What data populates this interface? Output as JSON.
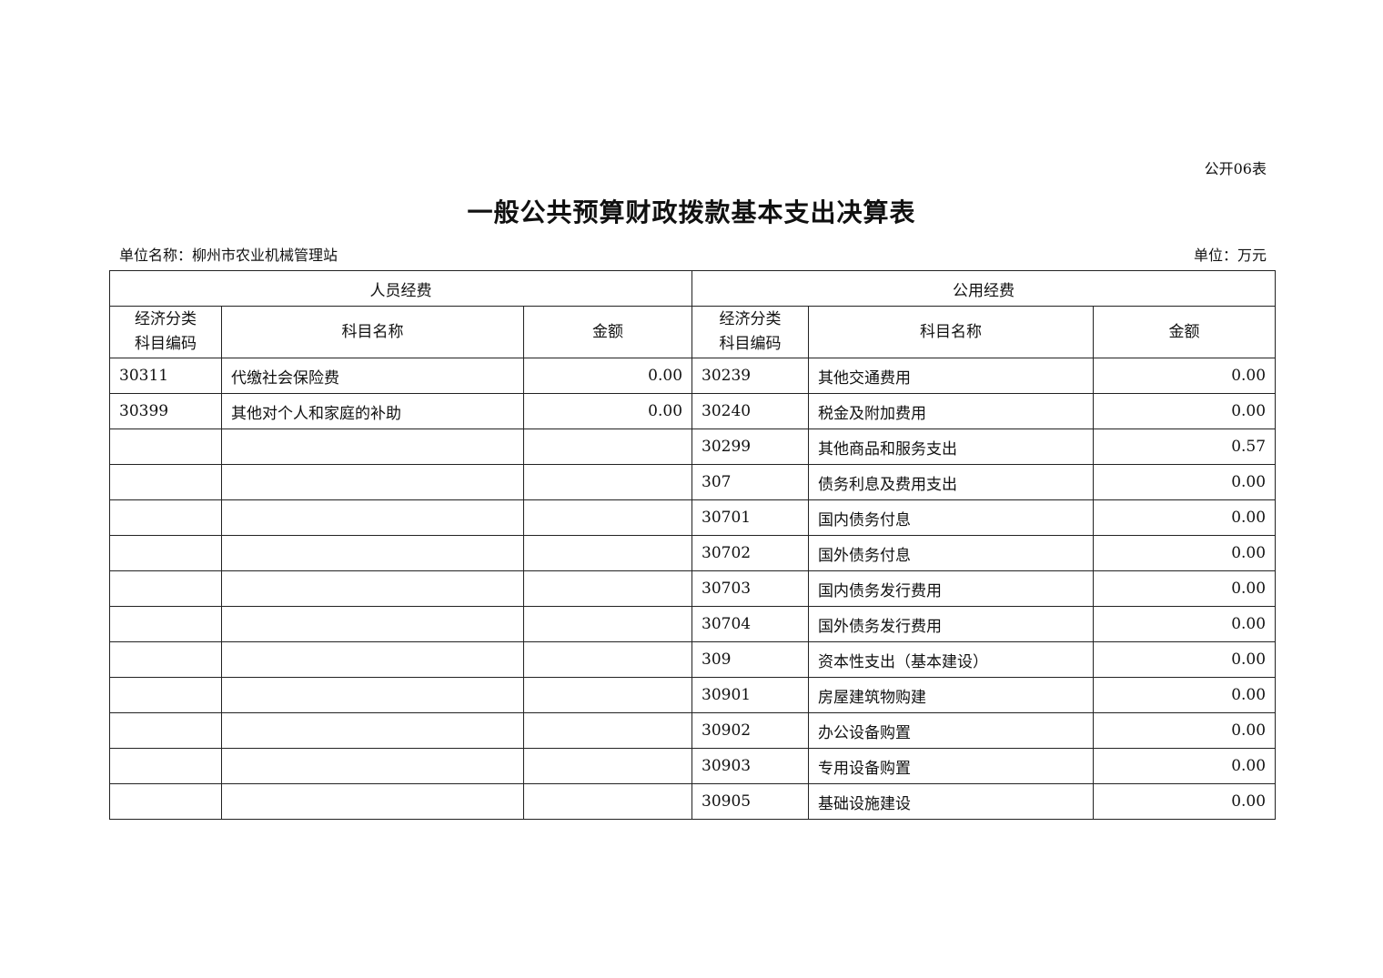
{
  "form_no": "公开06表",
  "title": "一般公共预算财政拨款基本支出决算表",
  "unit_name": "单位名称：柳州市农业机械管理站",
  "unit": "单位：万元",
  "table": {
    "group_headers": [
      "人员经费",
      "公用经费"
    ],
    "sub_headers": [
      "经济分类\n科目编码",
      "科目名称",
      "金额",
      "经济分类\n科目编码",
      "科目名称",
      "金额"
    ],
    "rows": [
      [
        "30311",
        "代缴社会保险费",
        "0.00",
        "30239",
        "其他交通费用",
        "0.00"
      ],
      [
        "30399",
        "其他对个人和家庭的补助",
        "0.00",
        "30240",
        "税金及附加费用",
        "0.00"
      ],
      [
        "",
        "",
        "",
        "30299",
        "其他商品和服务支出",
        "0.57"
      ],
      [
        "",
        "",
        "",
        "307",
        "债务利息及费用支出",
        "0.00"
      ],
      [
        "",
        "",
        "",
        "30701",
        "国内债务付息",
        "0.00"
      ],
      [
        "",
        "",
        "",
        "30702",
        "国外债务付息",
        "0.00"
      ],
      [
        "",
        "",
        "",
        "30703",
        "国内债务发行费用",
        "0.00"
      ],
      [
        "",
        "",
        "",
        "30704",
        "国外债务发行费用",
        "0.00"
      ],
      [
        "",
        "",
        "",
        "309",
        "资本性支出（基本建设）",
        "0.00"
      ],
      [
        "",
        "",
        "",
        "30901",
        "房屋建筑物购建",
        "0.00"
      ],
      [
        "",
        "",
        "",
        "30902",
        "办公设备购置",
        "0.00"
      ],
      [
        "",
        "",
        "",
        "30903",
        "专用设备购置",
        "0.00"
      ],
      [
        "",
        "",
        "",
        "30905",
        "基础设施建设",
        "0.00"
      ]
    ]
  }
}
